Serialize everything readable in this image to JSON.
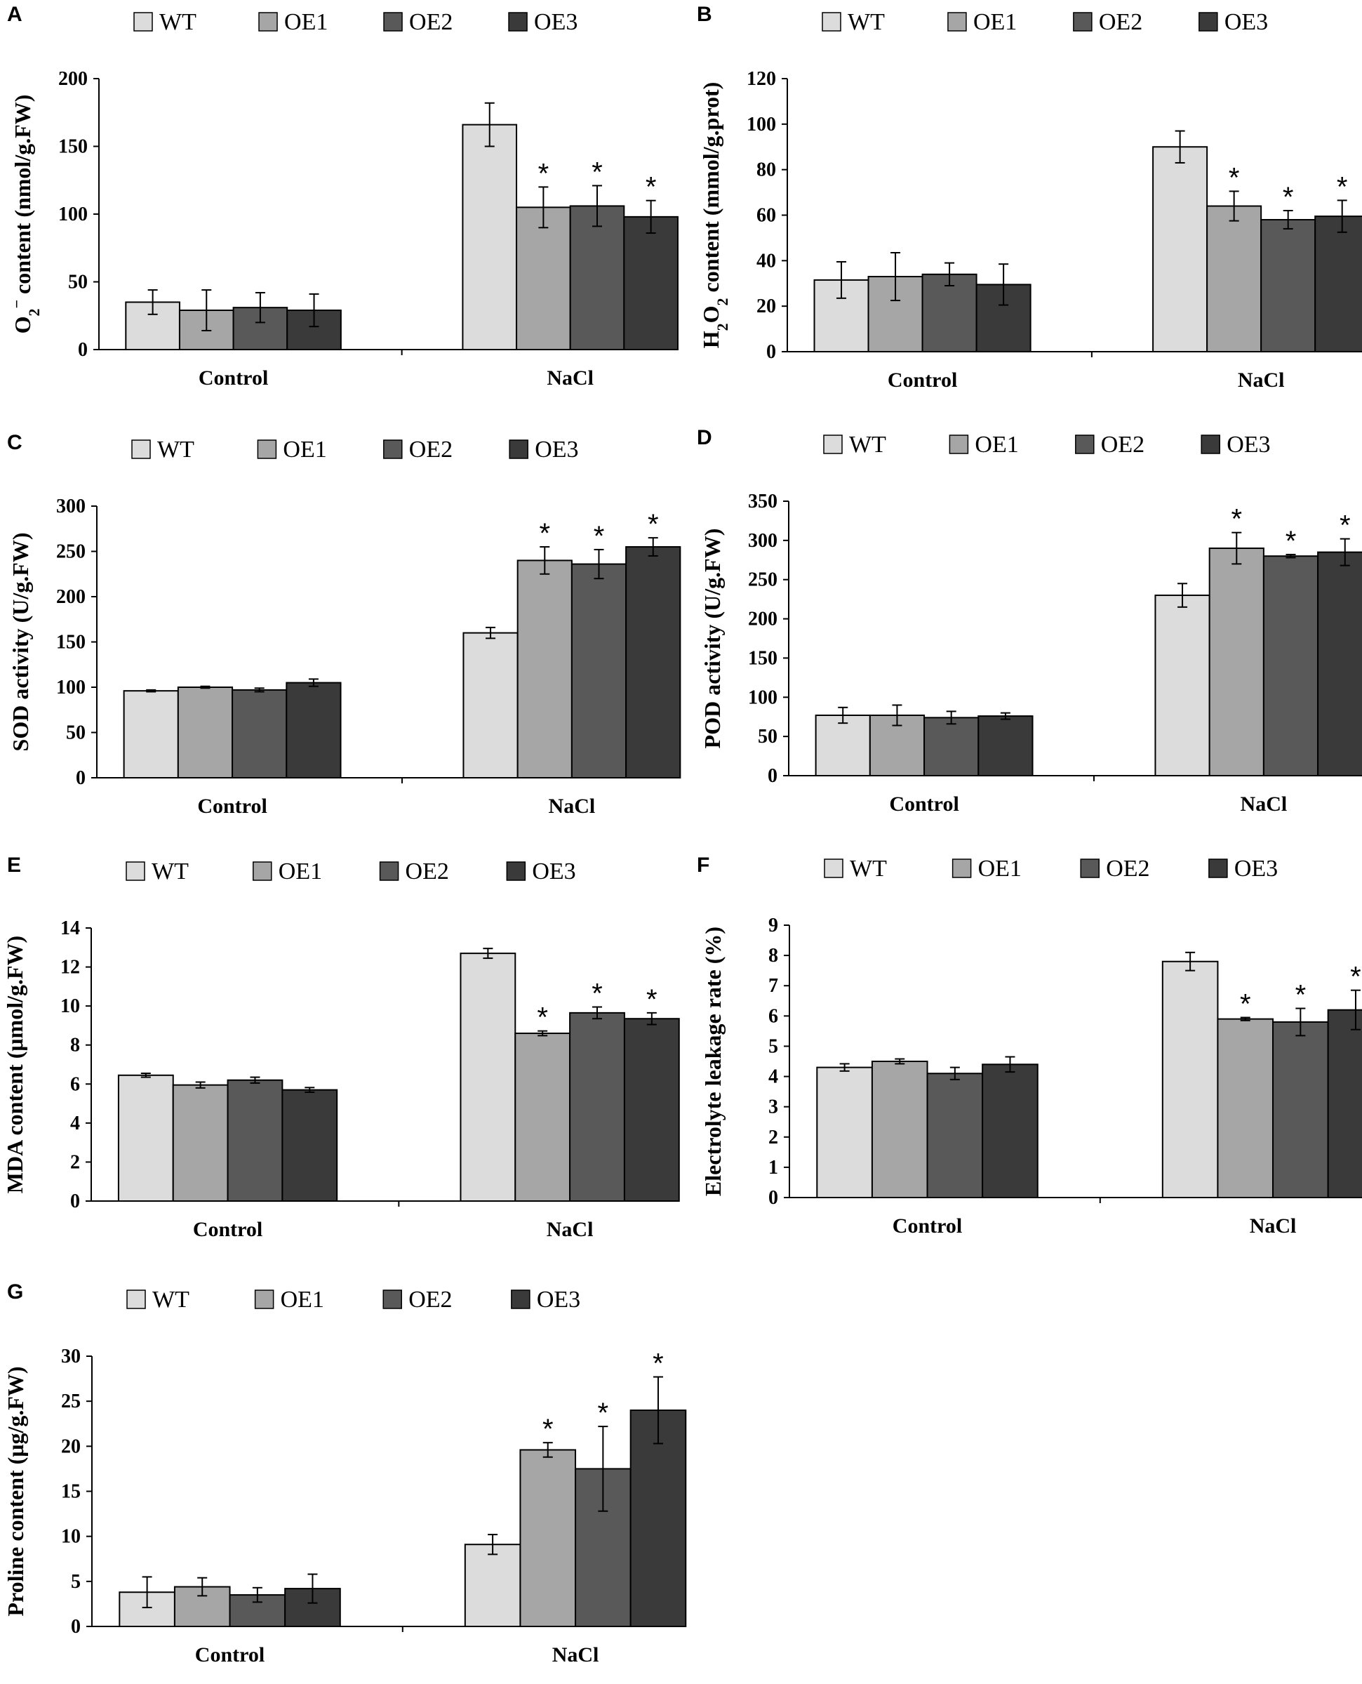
{
  "colors": {
    "WT": "#dcdcdc",
    "OE1": "#a6a6a6",
    "OE2": "#595959",
    "OE3": "#3a3a3a",
    "stroke": "#000000"
  },
  "chart_data": [
    {
      "letter": "A",
      "type": "bar",
      "categories": [
        "Control",
        "NaCl"
      ],
      "series": [
        {
          "name": "WT",
          "values": [
            35,
            166
          ],
          "errors": [
            9,
            16
          ],
          "sig": [
            "",
            ""
          ]
        },
        {
          "name": "OE1",
          "values": [
            29,
            105
          ],
          "errors": [
            15,
            15
          ],
          "sig": [
            "",
            "*"
          ]
        },
        {
          "name": "OE2",
          "values": [
            31,
            106
          ],
          "errors": [
            11,
            15
          ],
          "sig": [
            "",
            "*"
          ]
        },
        {
          "name": "OE3",
          "values": [
            29,
            98
          ],
          "errors": [
            12,
            12
          ],
          "sig": [
            "",
            "*"
          ]
        }
      ],
      "ylabel": "O2− content (nmol/g.FW)",
      "ylim": [
        0,
        200
      ],
      "yticks": [
        "0",
        "50",
        "100",
        "150",
        "200"
      ]
    },
    {
      "letter": "B",
      "type": "bar",
      "categories": [
        "Control",
        "NaCl"
      ],
      "series": [
        {
          "name": "WT",
          "values": [
            31.5,
            90
          ],
          "errors": [
            8,
            7
          ],
          "sig": [
            "",
            ""
          ]
        },
        {
          "name": "OE1",
          "values": [
            33,
            64
          ],
          "errors": [
            10.5,
            6.5
          ],
          "sig": [
            "",
            "*"
          ]
        },
        {
          "name": "OE2",
          "values": [
            34,
            58
          ],
          "errors": [
            5,
            4
          ],
          "sig": [
            "",
            "*"
          ]
        },
        {
          "name": "OE3",
          "values": [
            29.5,
            59.5
          ],
          "errors": [
            9,
            7
          ],
          "sig": [
            "",
            "*"
          ]
        }
      ],
      "ylabel": "H2O2 content (mmol/g.prot)",
      "ylim": [
        0,
        120
      ],
      "yticks": [
        "0",
        "20",
        "40",
        "60",
        "80",
        "100",
        "120"
      ]
    },
    {
      "letter": "C",
      "type": "bar",
      "categories": [
        "Control",
        "NaCl"
      ],
      "series": [
        {
          "name": "WT",
          "values": [
            96,
            160
          ],
          "errors": [
            1,
            6
          ],
          "sig": [
            "",
            ""
          ]
        },
        {
          "name": "OE1",
          "values": [
            100,
            240
          ],
          "errors": [
            1,
            15
          ],
          "sig": [
            "",
            "*"
          ]
        },
        {
          "name": "OE2",
          "values": [
            97,
            236
          ],
          "errors": [
            2,
            16
          ],
          "sig": [
            "",
            "*"
          ]
        },
        {
          "name": "OE3",
          "values": [
            105,
            255
          ],
          "errors": [
            4,
            10
          ],
          "sig": [
            "",
            "*"
          ]
        }
      ],
      "ylabel": "SOD activity (U/g.FW)",
      "ylim": [
        0,
        300
      ],
      "yticks": [
        "0",
        "50",
        "100",
        "150",
        "200",
        "250",
        "300"
      ]
    },
    {
      "letter": "D",
      "type": "bar",
      "categories": [
        "Control",
        "NaCl"
      ],
      "series": [
        {
          "name": "WT",
          "values": [
            77,
            230
          ],
          "errors": [
            10,
            15
          ],
          "sig": [
            "",
            ""
          ]
        },
        {
          "name": "OE1",
          "values": [
            77,
            290
          ],
          "errors": [
            13,
            20
          ],
          "sig": [
            "",
            "*"
          ]
        },
        {
          "name": "OE2",
          "values": [
            74,
            280
          ],
          "errors": [
            8,
            2
          ],
          "sig": [
            "",
            "*"
          ]
        },
        {
          "name": "OE3",
          "values": [
            76,
            285
          ],
          "errors": [
            4,
            17
          ],
          "sig": [
            "",
            "*"
          ]
        }
      ],
      "ylabel": "POD activity (U/g.FW)",
      "ylim": [
        0,
        350
      ],
      "yticks": [
        "0",
        "50",
        "100",
        "150",
        "200",
        "250",
        "300",
        "350"
      ]
    },
    {
      "letter": "E",
      "type": "bar",
      "categories": [
        "Control",
        "NaCl"
      ],
      "series": [
        {
          "name": "WT",
          "values": [
            6.45,
            12.7
          ],
          "errors": [
            0.1,
            0.25
          ],
          "sig": [
            "",
            ""
          ]
        },
        {
          "name": "OE1",
          "values": [
            5.95,
            8.6
          ],
          "errors": [
            0.15,
            0.12
          ],
          "sig": [
            "",
            "*"
          ]
        },
        {
          "name": "OE2",
          "values": [
            6.2,
            9.65
          ],
          "errors": [
            0.15,
            0.3
          ],
          "sig": [
            "",
            "*"
          ]
        },
        {
          "name": "OE3",
          "values": [
            5.7,
            9.35
          ],
          "errors": [
            0.12,
            0.3
          ],
          "sig": [
            "",
            "*"
          ]
        }
      ],
      "ylabel": "MDA content (μmol/g.FW)",
      "ylim": [
        0,
        14
      ],
      "yticks": [
        "0",
        "2",
        "4",
        "6",
        "8",
        "10",
        "12",
        "14"
      ]
    },
    {
      "letter": "F",
      "type": "bar",
      "categories": [
        "Control",
        "NaCl"
      ],
      "series": [
        {
          "name": "WT",
          "values": [
            4.3,
            7.8
          ],
          "errors": [
            0.12,
            0.3
          ],
          "sig": [
            "",
            ""
          ]
        },
        {
          "name": "OE1",
          "values": [
            4.5,
            5.9
          ],
          "errors": [
            0.08,
            0.05
          ],
          "sig": [
            "",
            "*"
          ]
        },
        {
          "name": "OE2",
          "values": [
            4.1,
            5.8
          ],
          "errors": [
            0.2,
            0.45
          ],
          "sig": [
            "",
            "*"
          ]
        },
        {
          "name": "OE3",
          "values": [
            4.4,
            6.2
          ],
          "errors": [
            0.25,
            0.65
          ],
          "sig": [
            "",
            "*"
          ]
        }
      ],
      "ylabel": "Electrolyte leakage rate (%)",
      "ylim": [
        0,
        9
      ],
      "yticks": [
        "0",
        "1",
        "2",
        "3",
        "4",
        "5",
        "6",
        "7",
        "8",
        "9"
      ]
    },
    {
      "letter": "G",
      "type": "bar",
      "categories": [
        "Control",
        "NaCl"
      ],
      "series": [
        {
          "name": "WT",
          "values": [
            3.8,
            9.1
          ],
          "errors": [
            1.7,
            1.1
          ],
          "sig": [
            "",
            ""
          ]
        },
        {
          "name": "OE1",
          "values": [
            4.4,
            19.6
          ],
          "errors": [
            1.0,
            0.8
          ],
          "sig": [
            "",
            "*"
          ]
        },
        {
          "name": "OE2",
          "values": [
            3.5,
            17.5
          ],
          "errors": [
            0.8,
            4.7
          ],
          "sig": [
            "",
            "*"
          ]
        },
        {
          "name": "OE3",
          "values": [
            4.2,
            24.0
          ],
          "errors": [
            1.6,
            3.7
          ],
          "sig": [
            "",
            "*"
          ]
        }
      ],
      "ylabel": "Proline content (μg/g.FW)",
      "ylim": [
        0,
        30
      ],
      "yticks": [
        "0",
        "5",
        "10",
        "15",
        "20",
        "25",
        "30"
      ]
    }
  ]
}
